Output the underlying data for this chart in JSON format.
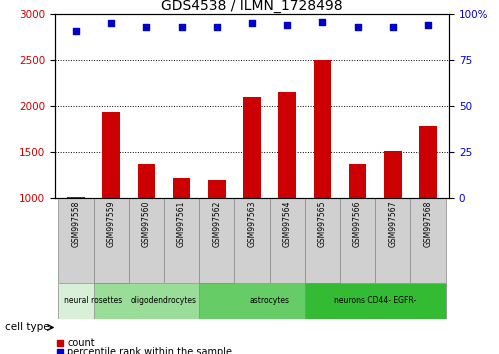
{
  "title": "GDS4538 / ILMN_1728498",
  "samples": [
    "GSM997558",
    "GSM997559",
    "GSM997560",
    "GSM997561",
    "GSM997562",
    "GSM997563",
    "GSM997564",
    "GSM997565",
    "GSM997566",
    "GSM997567",
    "GSM997568"
  ],
  "counts": [
    1010,
    1940,
    1370,
    1215,
    1200,
    2100,
    2155,
    2500,
    1370,
    1510,
    1790
  ],
  "percentile_ranks": [
    91,
    95,
    93,
    93,
    93,
    95,
    94,
    96,
    93,
    93,
    94
  ],
  "ylim_left": [
    1000,
    3000
  ],
  "ylim_right": [
    0,
    100
  ],
  "yticks_left": [
    1000,
    1500,
    2000,
    2500,
    3000
  ],
  "yticks_right": [
    0,
    25,
    50,
    75,
    100
  ],
  "bar_color": "#cc0000",
  "dot_color": "#0000cc",
  "cell_groups": [
    {
      "label": "neural rosettes",
      "start": 0,
      "end": 1,
      "color": "#d8f0d8"
    },
    {
      "label": "oligodendrocytes",
      "start": 1,
      "end": 4,
      "color": "#99dd99"
    },
    {
      "label": "astrocytes",
      "start": 4,
      "end": 7,
      "color": "#66cc66"
    },
    {
      "label": "neurons CD44- EGFR-",
      "start": 7,
      "end": 10,
      "color": "#33bb33"
    }
  ],
  "legend_count_label": "count",
  "legend_percentile_label": "percentile rank within the sample",
  "cell_type_label": "cell type",
  "bar_bottom": 1000,
  "gridlines": [
    1500,
    2000,
    2500
  ]
}
